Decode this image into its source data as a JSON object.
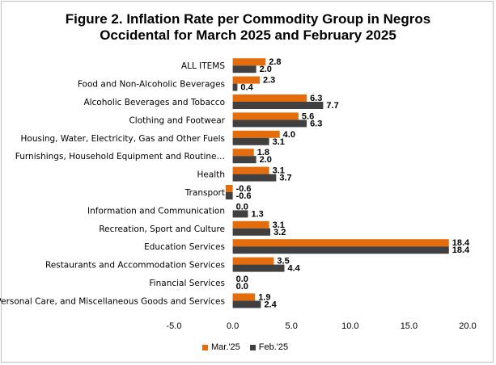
{
  "chart_data": {
    "type": "bar",
    "orientation": "horizontal",
    "title_line1": "Figure 2. Inflation Rate per Commodity Group in Negros",
    "title_line2": "Occidental for March 2025 and February 2025",
    "categories": [
      "ALL ITEMS",
      "Food and Non-Alcoholic Beverages",
      "Alcoholic Beverages and Tobacco",
      "Clothing and Footwear",
      "Housing, Water, Electricity, Gas and Other Fuels",
      "Furnishings, Household Equipment and Routine…",
      "Health",
      "Transport",
      "Information and Communication",
      "Recreation, Sport and Culture",
      "Education Services",
      "Restaurants and Accommodation Services",
      "Financial Services",
      "Personal Care, and Miscellaneous Goods and Services"
    ],
    "series": [
      {
        "name": "Mar.'25",
        "color": "#e46c0a",
        "values": [
          2.8,
          2.3,
          6.3,
          5.6,
          4.0,
          1.8,
          3.1,
          -0.6,
          0.0,
          3.1,
          18.4,
          3.5,
          0.0,
          1.9
        ],
        "labels": [
          "2.8",
          "2.3",
          "6.3",
          "5.6",
          "4.0",
          "1.8",
          "3.1",
          "-0.6",
          "0.0",
          "3.1",
          "18.4",
          "3.5",
          "0.0",
          "1.9"
        ]
      },
      {
        "name": "Feb.'25",
        "color": "#404040",
        "values": [
          2.0,
          0.4,
          7.7,
          6.3,
          3.1,
          2.0,
          3.7,
          -0.6,
          1.3,
          3.2,
          18.4,
          4.4,
          0.0,
          2.4
        ],
        "labels": [
          "2.0",
          "0.4",
          "7.7",
          "6.3",
          "3.1",
          "2.0",
          "3.7",
          "-0.6",
          "1.3",
          "3.2",
          "18.4",
          "4.4",
          "0.0",
          "2.4"
        ]
      }
    ],
    "xlim": [
      -5,
      20
    ],
    "xticks": [
      -5,
      0,
      5,
      10,
      15,
      20
    ],
    "xtick_labels": [
      "-5.0",
      "0.0",
      "5.0",
      "10.0",
      "15.0",
      "20.0"
    ],
    "grid": false,
    "legend_position": "bottom"
  }
}
